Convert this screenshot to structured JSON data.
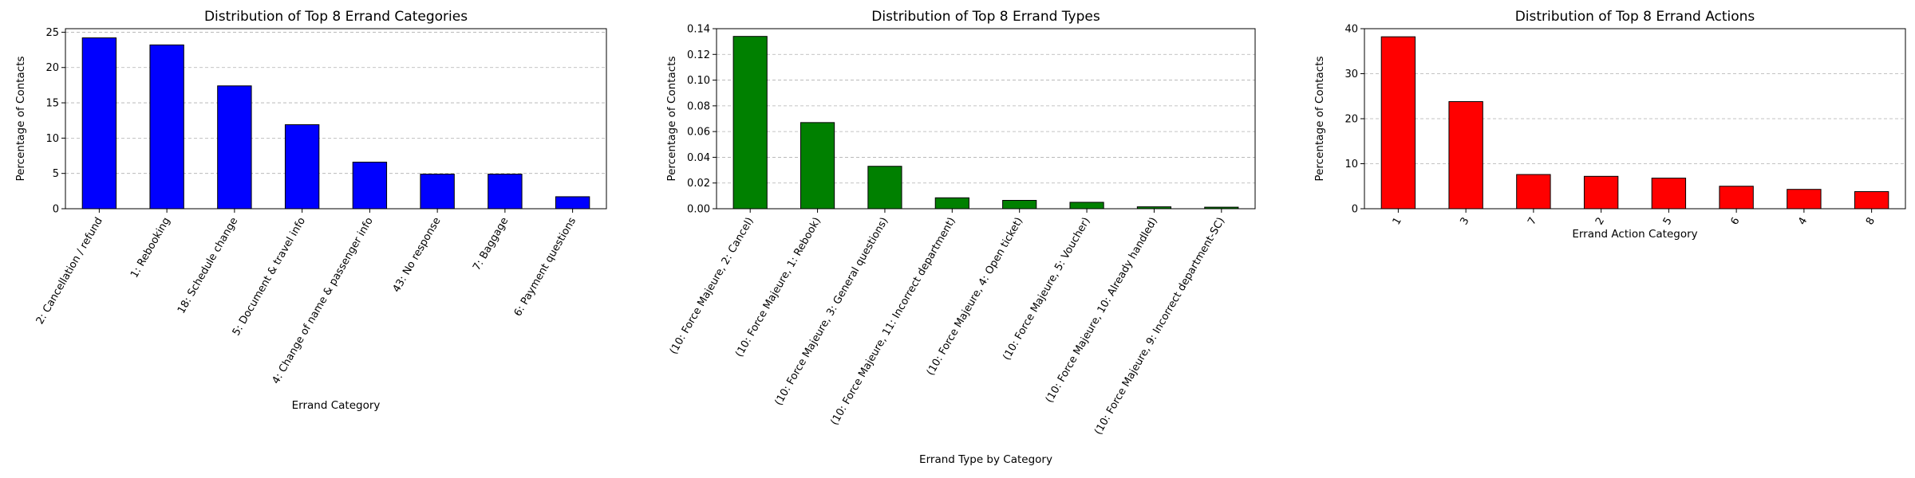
{
  "chart_data": [
    {
      "type": "bar",
      "title": "Distribution of Top 8 Errand Categories",
      "xlabel": "Errand Category",
      "ylabel": "Percentage of Contacts",
      "color": "#0000ff",
      "ylim": [
        0,
        25.5
      ],
      "yticks": [
        0,
        5,
        10,
        15,
        20,
        25
      ],
      "grid": "y-dashed",
      "categories": [
        "2: Cancellation / refund",
        "1: Rebooking",
        "18: Schedule change",
        "5: Document & travel info",
        "4: Change of name & passenger info",
        "43: No response",
        "7: Baggage",
        "6: Payment questions"
      ],
      "values": [
        24.2,
        23.2,
        17.4,
        11.9,
        6.6,
        4.9,
        4.9,
        1.7
      ]
    },
    {
      "type": "bar",
      "title": "Distribution of Top 8 Errand Types",
      "xlabel": "Errand Type by Category",
      "ylabel": "Percentage of Contacts",
      "color": "#008000",
      "ylim": [
        0,
        0.14
      ],
      "yticks": [
        0.0,
        0.02,
        0.04,
        0.06,
        0.08,
        0.1,
        0.12,
        0.14
      ],
      "grid": "y-dashed",
      "categories": [
        "(10: Force Majeure, 2: Cancel)",
        "(10: Force Majeure, 1: Rebook)",
        "(10: Force Majeure, 3: General questions)",
        "(10: Force Majeure, 11: Incorrect department)",
        "(10: Force Majeure, 4: Open ticket)",
        "(10: Force Majeure, 5: Voucher)",
        "(10: Force Majeure, 10: Already handled)",
        "(10: Force Majeure, 9: Incorrect department-SC)"
      ],
      "values": [
        0.134,
        0.067,
        0.033,
        0.0085,
        0.0065,
        0.005,
        0.0015,
        0.0012
      ]
    },
    {
      "type": "bar",
      "title": "Distribution of Top 8 Errand Actions",
      "xlabel": "Errand Action Category",
      "ylabel": "Percentage of Contacts",
      "color": "#ff0000",
      "ylim": [
        0,
        40
      ],
      "yticks": [
        0,
        10,
        20,
        30,
        40
      ],
      "grid": "y-dashed",
      "categories": [
        "1",
        "3",
        "7",
        "2",
        "5",
        "6",
        "4",
        "8"
      ],
      "values": [
        38.2,
        23.8,
        7.6,
        7.2,
        6.8,
        5.0,
        4.3,
        3.8
      ]
    }
  ]
}
